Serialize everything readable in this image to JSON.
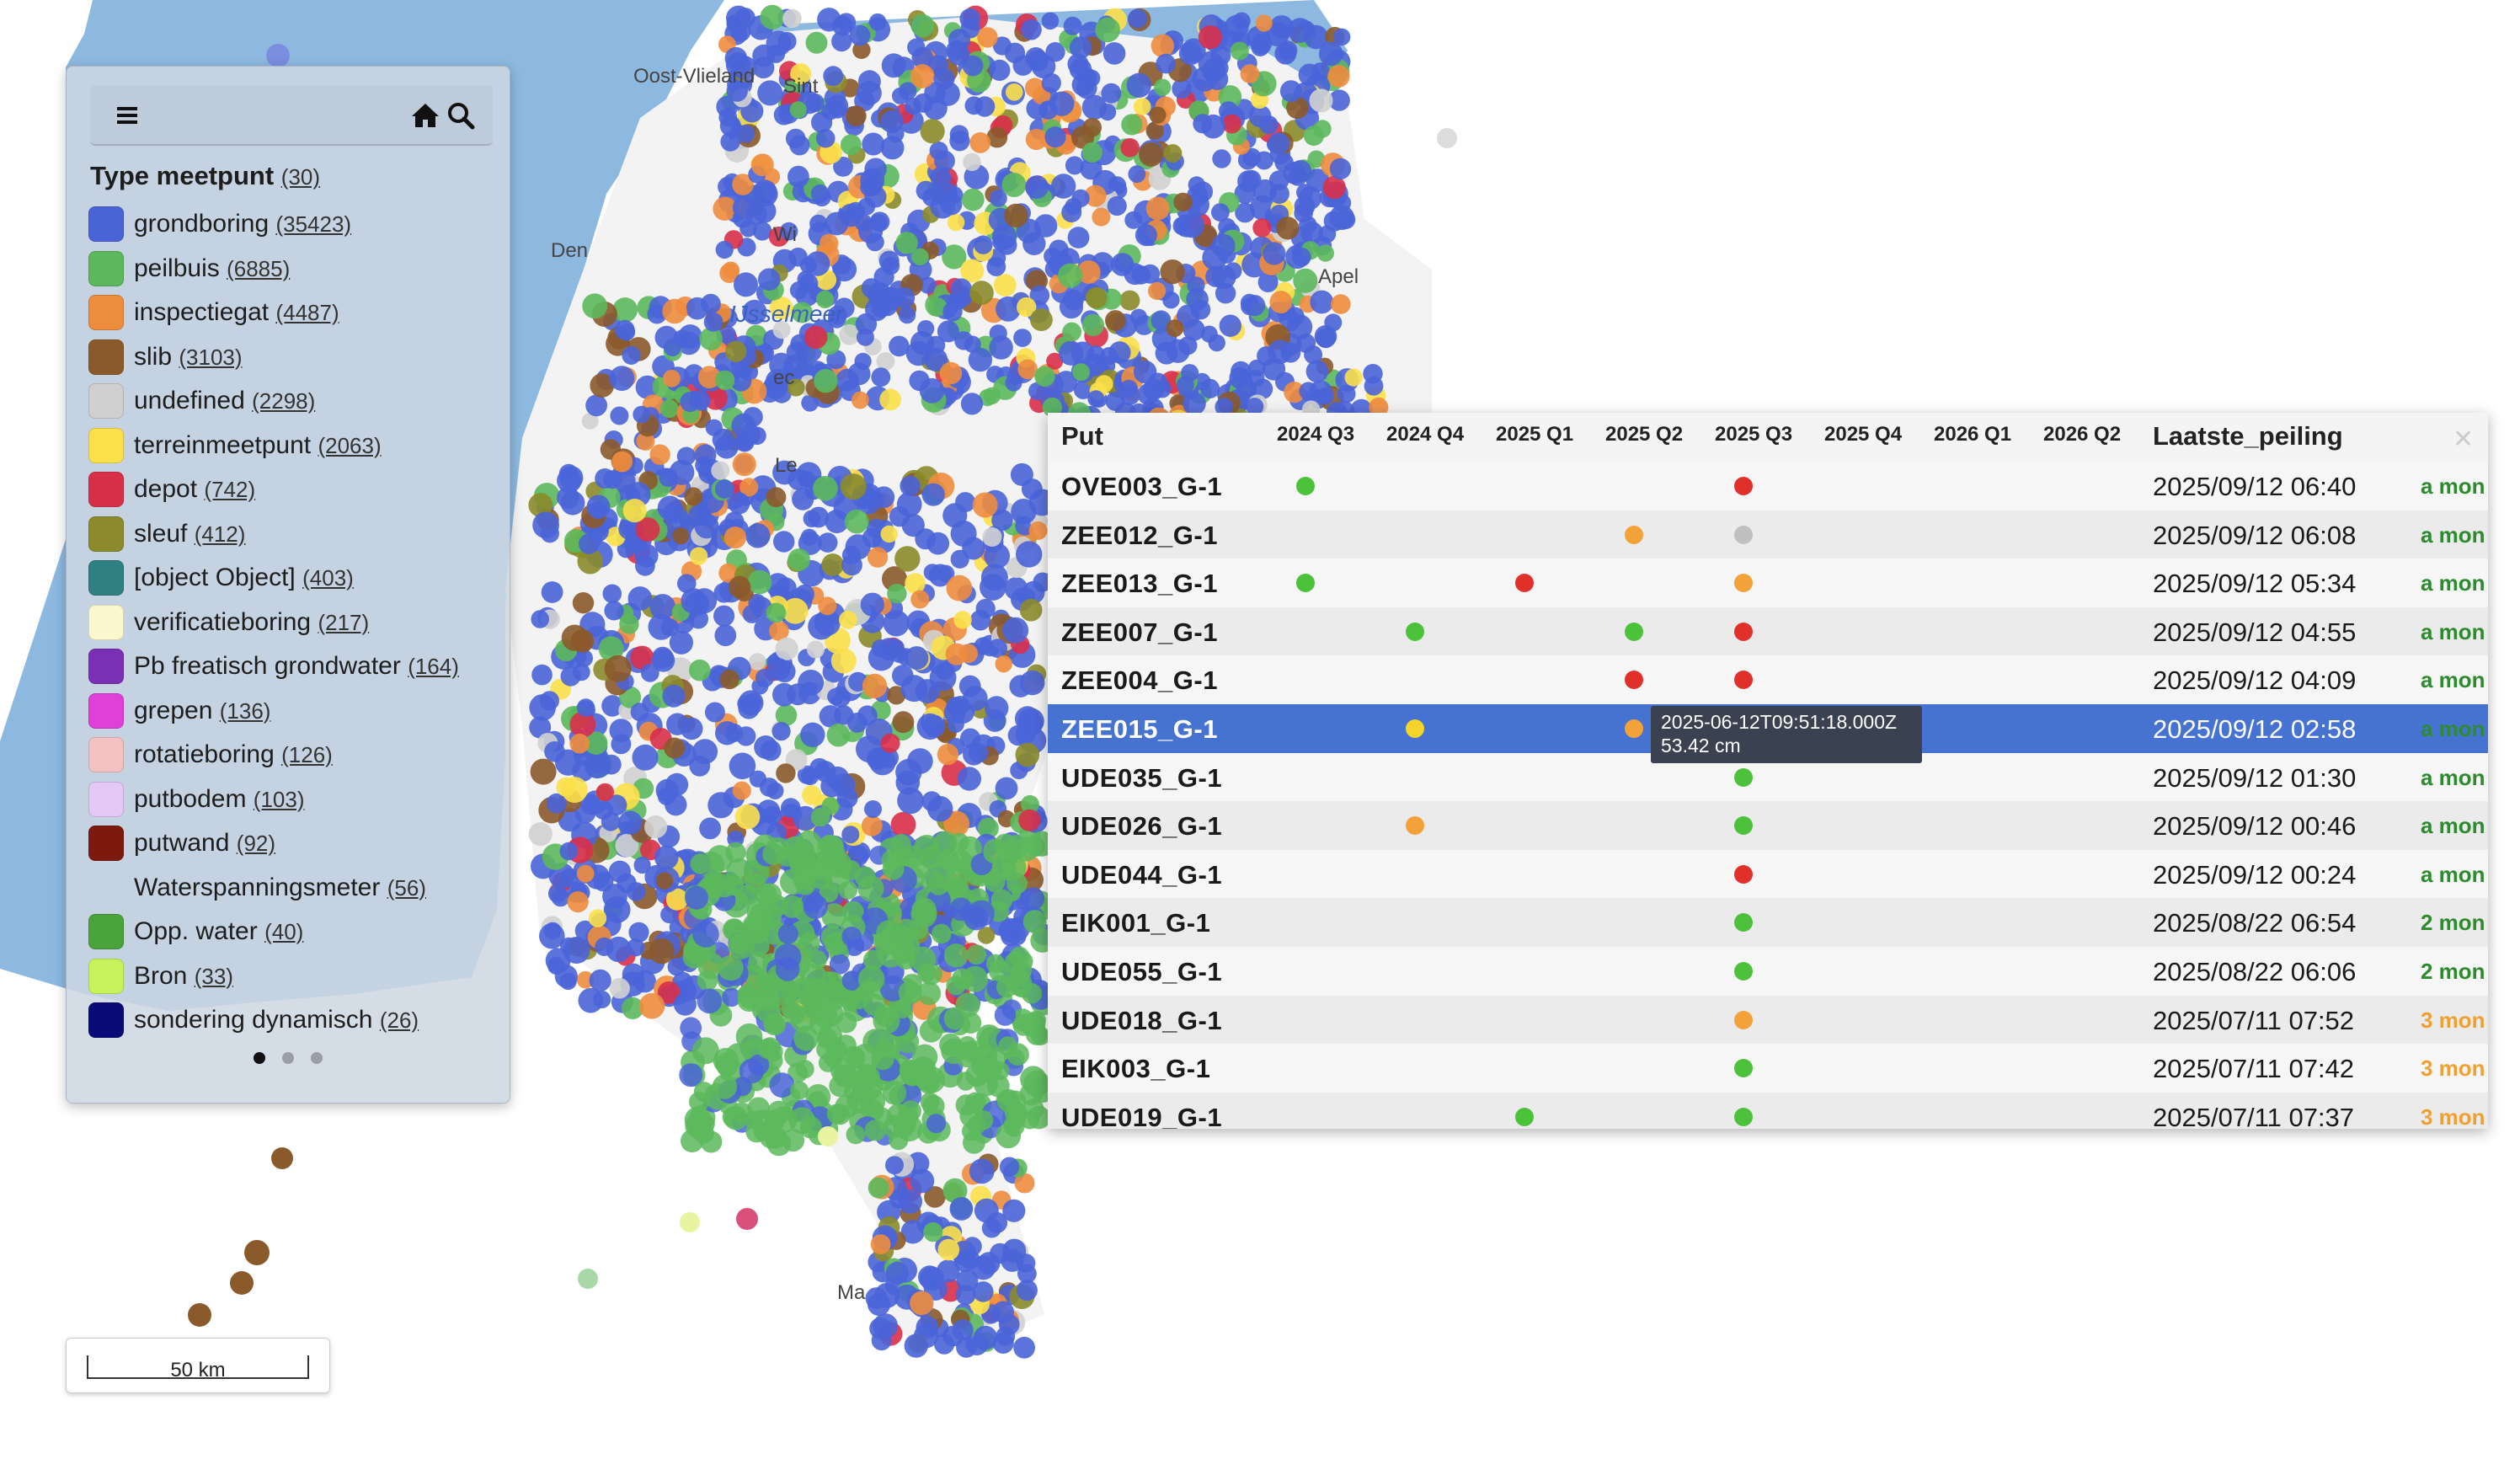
{
  "map": {
    "colors": {
      "sea": "#8db9e0",
      "land": "#f3f3f3",
      "grondboring": "#4a64d8",
      "peilbuis": "#5cb85c",
      "inspectiegat": "#ee8c3e",
      "slib": "#8b5a2b",
      "depot": "#d9304a",
      "terreinmeetpunt": "#fbe04a"
    },
    "labels": [
      "Oost-Vlieland",
      "Sint",
      "Den",
      "Wi",
      "IJsselmeer",
      "ec",
      "Le",
      "Ma",
      "Apel"
    ]
  },
  "legend": {
    "menu_icon": "hamburger-menu-icon",
    "home_icon": "home-icon",
    "search_icon": "search-icon",
    "title": "Type meetpunt",
    "title_count": "(30)",
    "items": [
      {
        "label": "grondboring",
        "count": "(35423)",
        "color": "#4a64d8"
      },
      {
        "label": "peilbuis",
        "count": "(6885)",
        "color": "#5cb85c"
      },
      {
        "label": "inspectiegat",
        "count": "(4487)",
        "color": "#ee8c3e"
      },
      {
        "label": "slib",
        "count": "(3103)",
        "color": "#8b5a2b"
      },
      {
        "label": "undefined",
        "count": "(2298)",
        "color": "#d0d0d0"
      },
      {
        "label": "terreinmeetpunt",
        "count": "(2063)",
        "color": "#fbe04a"
      },
      {
        "label": "depot",
        "count": "(742)",
        "color": "#d9304a"
      },
      {
        "label": "sleuf",
        "count": "(412)",
        "color": "#8b8b2b"
      },
      {
        "label": "[object Object]",
        "count": "(403)",
        "color": "#2f8080"
      },
      {
        "label": "verificatieboring",
        "count": "(217)",
        "color": "#fdf7cf"
      },
      {
        "label": "Pb freatisch grondwater",
        "count": "(164)",
        "color": "#7b2fb5"
      },
      {
        "label": "grepen",
        "count": "(136)",
        "color": "#e040d8"
      },
      {
        "label": "rotatieboring",
        "count": "(126)",
        "color": "#f4c2c2"
      },
      {
        "label": "putbodem",
        "count": "(103)",
        "color": "#e4c8f6"
      },
      {
        "label": "putwand",
        "count": "(92)",
        "color": "#7c1a10"
      },
      {
        "label": "Waterspanningsmeter",
        "count": "(56)",
        "color": "transparent"
      },
      {
        "label": "Opp. water",
        "count": "(40)",
        "color": "#4aa33a"
      },
      {
        "label": "Bron",
        "count": "(33)",
        "color": "#c8f25a"
      },
      {
        "label": "sondering dynamisch",
        "count": "(26)",
        "color": "#0a0a78"
      }
    ]
  },
  "scale": {
    "label": "50 km"
  },
  "table": {
    "headers": {
      "put": "Put",
      "quarters": [
        "2024 Q3",
        "2024 Q4",
        "2025 Q1",
        "2025 Q2",
        "2025 Q3",
        "2025 Q4",
        "2026 Q1",
        "2026 Q2"
      ],
      "laatste": "Laatste_peiling"
    },
    "status_colors": {
      "g": "#4cc23a",
      "o": "#f3a23a",
      "r": "#e1302a",
      "x": "#c0c0c0",
      "y": "#f5d42a"
    },
    "rel_colors": {
      "a mon": "#2e8a2e",
      "2 mon": "#2e8a2e",
      "3 mon": "#f0a030"
    },
    "rows": [
      {
        "put": "OVE003_G-1",
        "dots": [
          "g",
          "",
          "",
          "",
          "r",
          "",
          "",
          ""
        ],
        "date": "2025/09/12 06:40",
        "rel": "a mon"
      },
      {
        "put": "ZEE012_G-1",
        "dots": [
          "",
          "",
          "",
          "o",
          "x",
          "",
          "",
          ""
        ],
        "date": "2025/09/12 06:08",
        "rel": "a mon"
      },
      {
        "put": "ZEE013_G-1",
        "dots": [
          "g",
          "",
          "r",
          "",
          "o",
          "",
          "",
          ""
        ],
        "date": "2025/09/12 05:34",
        "rel": "a mon"
      },
      {
        "put": "ZEE007_G-1",
        "dots": [
          "",
          "g",
          "",
          "g",
          "r",
          "",
          "",
          ""
        ],
        "date": "2025/09/12 04:55",
        "rel": "a mon"
      },
      {
        "put": "ZEE004_G-1",
        "dots": [
          "",
          "",
          "",
          "r",
          "r",
          "",
          "",
          ""
        ],
        "date": "2025/09/12 04:09",
        "rel": "a mon"
      },
      {
        "put": "ZEE015_G-1",
        "dots": [
          "",
          "y",
          "",
          "o",
          "",
          "",
          "",
          ""
        ],
        "date": "2025/09/12 02:58",
        "rel": "a mon",
        "selected": true
      },
      {
        "put": "UDE035_G-1",
        "dots": [
          "",
          "",
          "",
          "",
          "g",
          "",
          "",
          ""
        ],
        "date": "2025/09/12 01:30",
        "rel": "a mon"
      },
      {
        "put": "UDE026_G-1",
        "dots": [
          "",
          "o",
          "",
          "",
          "g",
          "",
          "",
          ""
        ],
        "date": "2025/09/12 00:46",
        "rel": "a mon"
      },
      {
        "put": "UDE044_G-1",
        "dots": [
          "",
          "",
          "",
          "",
          "r",
          "",
          "",
          ""
        ],
        "date": "2025/09/12 00:24",
        "rel": "a mon"
      },
      {
        "put": "EIK001_G-1",
        "dots": [
          "",
          "",
          "",
          "",
          "g",
          "",
          "",
          ""
        ],
        "date": "2025/08/22 06:54",
        "rel": "2 mon"
      },
      {
        "put": "UDE055_G-1",
        "dots": [
          "",
          "",
          "",
          "",
          "g",
          "",
          "",
          ""
        ],
        "date": "2025/08/22 06:06",
        "rel": "2 mon"
      },
      {
        "put": "UDE018_G-1",
        "dots": [
          "",
          "",
          "",
          "",
          "o",
          "",
          "",
          ""
        ],
        "date": "2025/07/11 07:52",
        "rel": "3 mon"
      },
      {
        "put": "EIK003_G-1",
        "dots": [
          "",
          "",
          "",
          "",
          "g",
          "",
          "",
          ""
        ],
        "date": "2025/07/11 07:42",
        "rel": "3 mon"
      },
      {
        "put": "UDE019_G-1",
        "dots": [
          "",
          "",
          "g",
          "",
          "g",
          "",
          "",
          ""
        ],
        "date": "2025/07/11 07:37",
        "rel": "3 mon"
      }
    ],
    "tooltip": {
      "line1": "2025-06-12T09:51:18.000Z",
      "line2": "53.42 cm"
    }
  }
}
